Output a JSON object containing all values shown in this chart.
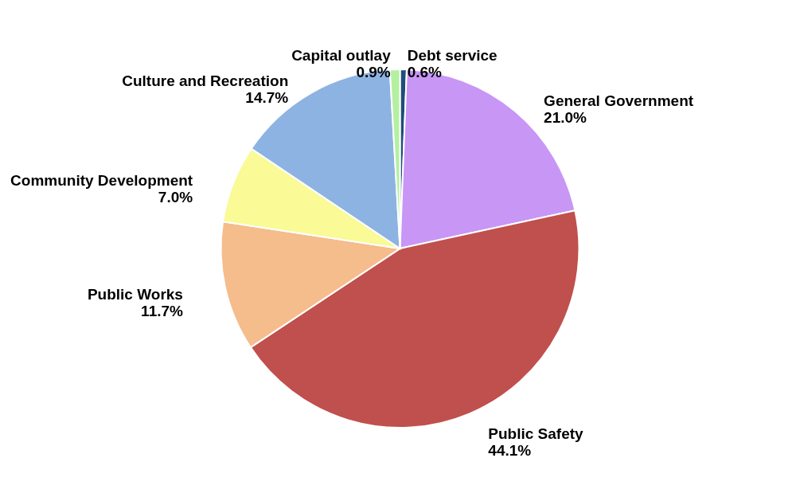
{
  "chart_data": {
    "type": "pie",
    "categories": [
      "Debt service",
      "General Government",
      "Public Safety",
      "Public Works",
      "Community Development",
      "Culture and Recreation",
      "Capital outlay"
    ],
    "values": [
      0.6,
      21.0,
      44.1,
      11.7,
      7.0,
      14.7,
      0.9
    ],
    "value_labels": [
      "0.6%",
      "21.0%",
      "44.1%",
      "11.7%",
      "7.0%",
      "14.7%",
      "0.9%"
    ],
    "colors": [
      "#1f4e79",
      "#c896f5",
      "#c0504d",
      "#f5bc8c",
      "#fafa96",
      "#8db3e2",
      "#b4f0a0"
    ],
    "legend": false
  }
}
